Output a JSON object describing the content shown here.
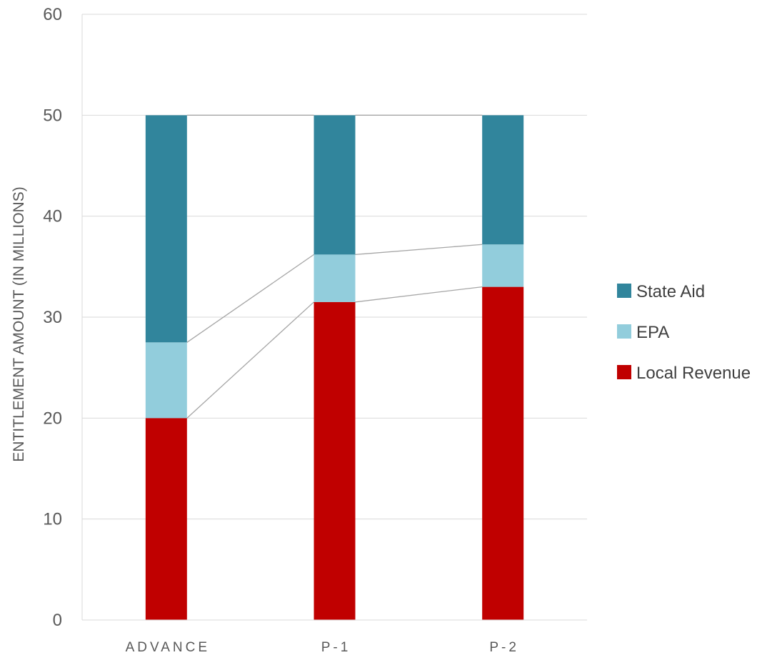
{
  "chart_data": {
    "type": "bar",
    "stacked": true,
    "title": "",
    "xlabel": "",
    "ylabel": "ENTITLEMENT AMOUNT (IN MILLIONS)",
    "categories": [
      "ADVANCE",
      "P-1",
      "P-2"
    ],
    "ylim": [
      0,
      60
    ],
    "yticks": [
      0,
      10,
      20,
      30,
      40,
      50,
      60
    ],
    "grid": true,
    "legend_position": "right",
    "series_lines": true,
    "series": [
      {
        "name": "Local Revenue",
        "color": "#C00000",
        "values": [
          20.0,
          31.5,
          33.0
        ]
      },
      {
        "name": "EPA",
        "color": "#92CDDC",
        "values": [
          7.5,
          4.7,
          4.2
        ]
      },
      {
        "name": "State Aid",
        "color": "#31859C",
        "values": [
          22.5,
          13.8,
          12.8
        ]
      }
    ],
    "legend_order": [
      "State Aid",
      "EPA",
      "Local Revenue"
    ]
  }
}
